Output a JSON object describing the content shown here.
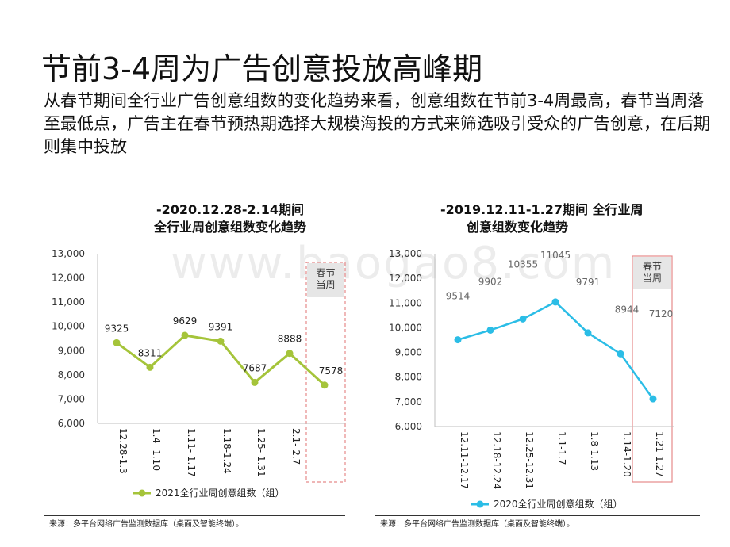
{
  "title": "节前3-4周为广告创意投放高峰期",
  "subtitle": "从春节期间全行业广告创意组数的变化趋势来看，创意组数在节前3-4周最高，春节当周落至最低点，广告主在春节预热期选择大规模海投的方式来筛选吸引受众的广告创意，在后期则集中投放",
  "watermark": "www.baogao8.com",
  "colors": {
    "left_series": "#a5c43a",
    "right_series": "#2bbde6",
    "highlight_border": "#e58a8a",
    "highlight_fill": "#e6e6e6"
  },
  "chart_data": [
    {
      "type": "line",
      "title_line1": "-2020.12.28-2.14期间",
      "title_line2": "全行业周创意组数变化趋势",
      "categories": [
        "12.28-1.3",
        "1.4- 1.10",
        "1.11- 1.17",
        "1.18-1.24",
        "1.25- 1.31",
        "2.1- 2.7",
        ""
      ],
      "series": [
        {
          "name": "2021全行业周创意组数（组）",
          "values": [
            9325,
            8311,
            9629,
            9391,
            7687,
            8888,
            7578
          ]
        }
      ],
      "data_labels": [
        "9325",
        "8311",
        "9629",
        "9391",
        "7687",
        "8888",
        "7578"
      ],
      "yticks": [
        "6,000",
        "7,000",
        "8,000",
        "9,000",
        "10,000",
        "11,000",
        "12,000",
        "13,000"
      ],
      "ylim": [
        6000,
        13000
      ],
      "highlight_label": "春节\n当周",
      "legend_position": "bottom",
      "source": "来源：多平台网络广告监测数据库（桌面及智能终端）。"
    },
    {
      "type": "line",
      "title_line1": "-2019.12.11-1.27期间 全行业周",
      "title_line2": "创意组数变化趋势",
      "categories": [
        "12.11-12.17",
        "12.18-12.24",
        "12.25-12.31",
        "1.1-1.7",
        "1.8-1.13",
        "1.14-1.20",
        "1.21-1.27"
      ],
      "series": [
        {
          "name": "2020全行业周创意组数（组）",
          "values": [
            9514,
            9902,
            10355,
            11045,
            9791,
            8944,
            7120
          ]
        }
      ],
      "data_labels": [
        "9514",
        "9902",
        "10355",
        "11045",
        "9791",
        "8944",
        "7120"
      ],
      "yticks": [
        "6,000",
        "7,000",
        "8,000",
        "9,000",
        "10,000",
        "11,000",
        "12,000",
        "13,000"
      ],
      "ylim": [
        6000,
        13000
      ],
      "highlight_label": "春节\n当周",
      "legend_position": "bottom",
      "source": "来源：多平台网络广告监测数据库（桌面及智能终端）。"
    }
  ]
}
